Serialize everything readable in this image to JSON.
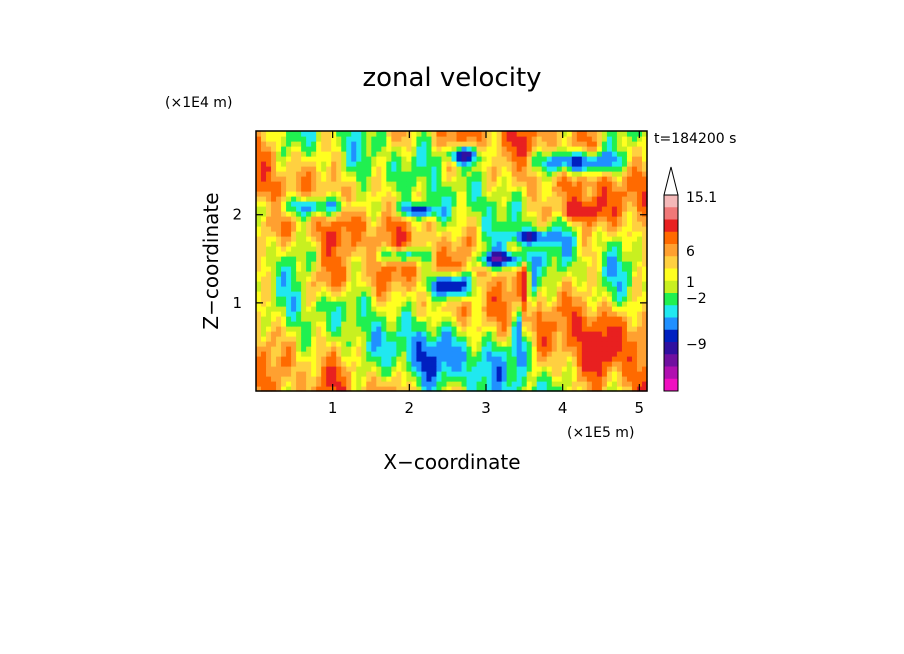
{
  "chart_data": {
    "type": "heatmap",
    "title": "zonal velocity",
    "xlabel": "X−coordinate",
    "ylabel": "Z−coordinate",
    "x_scale_label": "(×1E5 m)",
    "y_scale_label": "(×1E4 m)",
    "time_label": "t=184200 s",
    "xlim": [
      0,
      5.1
    ],
    "ylim": [
      0,
      2.95
    ],
    "x_ticks": [
      "1",
      "2",
      "3",
      "4",
      "5"
    ],
    "y_ticks": [
      "1",
      "2"
    ],
    "grid": false,
    "colorbar": {
      "placement": "right",
      "labels": [
        "15.1",
        "6",
        "1",
        "−2",
        "−9"
      ],
      "colors": [
        "#f4b8b8",
        "#f07878",
        "#e82020",
        "#ff6a00",
        "#ffa030",
        "#ffd040",
        "#ffff20",
        "#c8f020",
        "#20f050",
        "#20e8f0",
        "#2090ff",
        "#0020c0",
        "#3010a0",
        "#7010a0",
        "#b010b0",
        "#f010c0"
      ],
      "arrow_color": "#ffffff"
    },
    "field_note": "contoured zonal velocity field; blue bands (negative) in upper layers and descending near x=3.3–3.6, orange/yellow (positive) elsewhere, green near zero"
  }
}
